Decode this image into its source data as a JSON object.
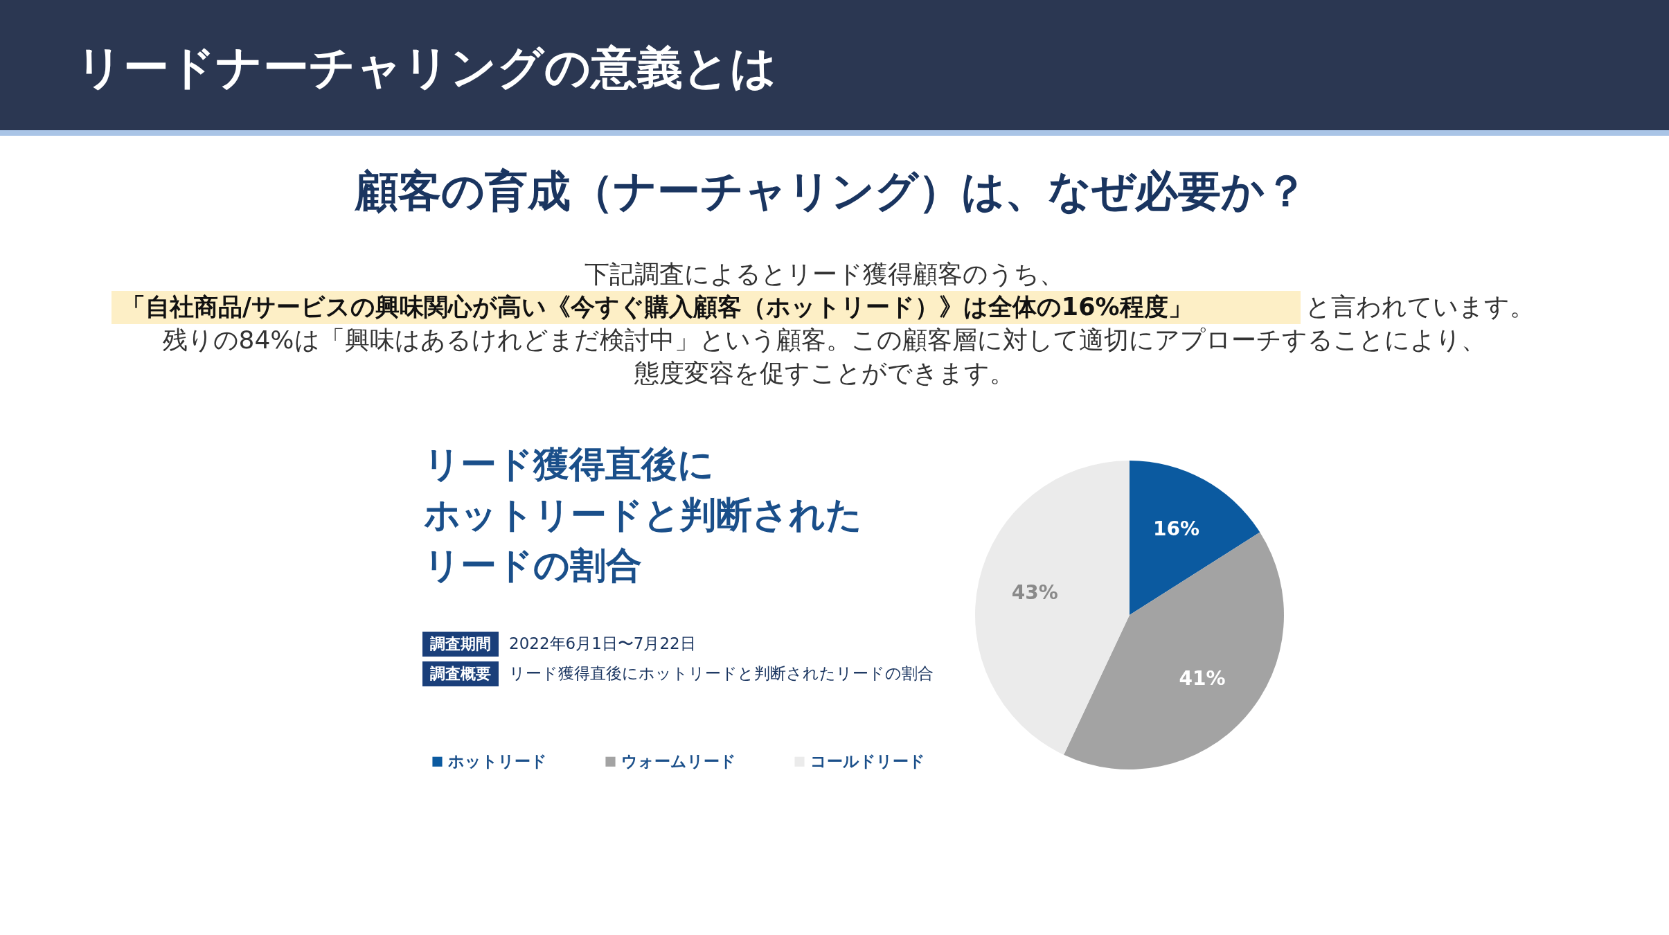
{
  "chart_data": {
    "type": "pie",
    "title": "リードナーチャリングの意義とは",
    "subtitle": "顧客の育成（ナーチャリング）は、なぜ必要か？",
    "categories": [
      "ホットリード",
      "ウォームリード",
      "コールドリード"
    ],
    "values": [
      16,
      41,
      43
    ],
    "colors": [
      "#0b5aa0",
      "#a3a3a3",
      "#ebebeb"
    ],
    "value_labels": [
      "16%",
      "41%",
      "43%"
    ],
    "legend": "bottom left",
    "annotations": [
      "下記調査によるとリード獲得顧客のうち、",
      "「自社商品/サービスの興味関心が高い《今すぐ購入顧客（ホットリード）》は全体の16%程度」",
      "と言われています。",
      "残りの84%は「興味はあるけれどまだ検討中」という顧客。この顧客層に対して適切にアプローチすることにより、",
      "態度変容を促すことができます。",
      "リード獲得直後に",
      "ホットリードと判断された",
      "リードの割合",
      "調査期間",
      "2022年6月1日〜7月22日",
      "調査概要",
      "リード獲得直後にホットリードと判断されたリードの割合"
    ]
  }
}
